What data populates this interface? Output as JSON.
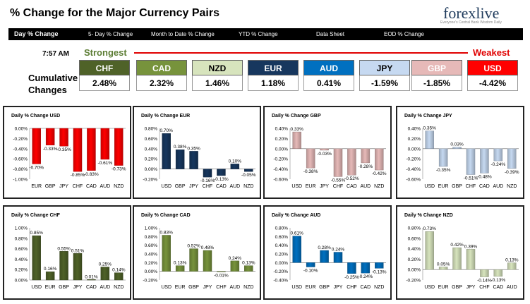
{
  "header": {
    "title": "% Change for the Major Currency Pairs",
    "logo": "forexlive",
    "logo_tagline": "Everyone's Central Bank Wisdom Daily"
  },
  "nav": [
    "Day % Change",
    "5- Day % Change",
    "Month to Date % Change",
    "YTD % Change",
    "Data Sheet",
    "EOD % Change"
  ],
  "time": "7:57 AM",
  "cumulative_label_1": "Cumulative",
  "cumulative_label_2": "Changes",
  "strongest_label": "Strongest",
  "weakest_label": "Weakest",
  "currencies": [
    {
      "code": "CHF",
      "value": "2.48%",
      "bg": "#4f6228",
      "fg": "#ffffff"
    },
    {
      "code": "CAD",
      "value": "2.32%",
      "bg": "#77933c",
      "fg": "#ffffff"
    },
    {
      "code": "NZD",
      "value": "1.46%",
      "bg": "#d7e4bd",
      "fg": "#000000"
    },
    {
      "code": "EUR",
      "value": "1.18%",
      "bg": "#17375e",
      "fg": "#ffffff"
    },
    {
      "code": "AUD",
      "value": "0.41%",
      "bg": "#0070c0",
      "fg": "#ffffff"
    },
    {
      "code": "JPY",
      "value": "-1.59%",
      "bg": "#c6d9f1",
      "fg": "#000000"
    },
    {
      "code": "GBP",
      "value": "-1.85%",
      "bg": "#e6b9b8",
      "fg": "#ffffff"
    },
    {
      "code": "USD",
      "value": "-4.42%",
      "bg": "#ff0000",
      "fg": "#ffffff"
    }
  ],
  "chart_data": [
    {
      "type": "bar",
      "title": "Daily % Change USD",
      "categories": [
        "EUR",
        "GBP",
        "JPY",
        "CHF",
        "CAD",
        "AUD",
        "NZD"
      ],
      "values": [
        -0.7,
        -0.33,
        -0.35,
        -0.85,
        -0.83,
        -0.61,
        -0.73
      ],
      "labels": [
        "-0.70%",
        "-0.33%",
        "-0.35%",
        "-0.85%",
        "-0.83%",
        "-0.61%",
        "-0.73%"
      ],
      "ylim": [
        -1.0,
        0.0
      ],
      "ytick_labels": [
        "0.00%",
        "-0.20%",
        "-0.40%",
        "-0.60%",
        "-0.80%",
        "-1.00%"
      ],
      "color": "#ff0000"
    },
    {
      "type": "bar",
      "title": "Daily % Change EUR",
      "categories": [
        "USD",
        "GBP",
        "JPY",
        "CHF",
        "CAD",
        "AUD",
        "NZD"
      ],
      "values": [
        0.7,
        0.38,
        0.35,
        -0.16,
        -0.13,
        0.1,
        -0.05
      ],
      "labels": [
        "0.70%",
        "0.38%",
        "0.35%",
        "-0.16%",
        "-0.13%",
        "0.10%",
        "-0.05%"
      ],
      "ylim": [
        -0.2,
        0.8
      ],
      "ytick_labels": [
        "0.80%",
        "0.60%",
        "0.40%",
        "0.20%",
        "0.00%",
        "-0.20%"
      ],
      "color": "#17375e"
    },
    {
      "type": "bar",
      "title": "Daily % Change GBP",
      "categories": [
        "USD",
        "EUR",
        "JPY",
        "CHF",
        "CAD",
        "AUD",
        "NZD"
      ],
      "values": [
        0.33,
        -0.38,
        -0.03,
        -0.55,
        -0.52,
        -0.28,
        -0.42
      ],
      "labels": [
        "0.33%",
        "-0.38%",
        "-0.03%",
        "-0.55%",
        "-0.52%",
        "-0.28%",
        "-0.42%"
      ],
      "ylim": [
        -0.6,
        0.4
      ],
      "ytick_labels": [
        "0.40%",
        "0.20%",
        "0.00%",
        "-0.20%",
        "-0.40%",
        "-0.60%"
      ],
      "color": "#e6b9b8"
    },
    {
      "type": "bar",
      "title": "Daily % Change JPY",
      "categories": [
        "USD",
        "EUR",
        "GBP",
        "CHF",
        "CAD",
        "AUD",
        "NZD"
      ],
      "values": [
        0.35,
        -0.35,
        0.03,
        -0.51,
        -0.48,
        -0.24,
        -0.39
      ],
      "labels": [
        "0.35%",
        "-0.35%",
        "0.03%",
        "-0.51%",
        "-0.48%",
        "-0.24%",
        "-0.39%"
      ],
      "ylim": [
        -0.6,
        0.4
      ],
      "ytick_labels": [
        "0.40%",
        "0.20%",
        "0.00%",
        "-0.20%",
        "-0.40%",
        "-0.60%"
      ],
      "color": "#c6d9f1"
    },
    {
      "type": "bar",
      "title": "Daily % Change CHF",
      "categories": [
        "USD",
        "EUR",
        "GBP",
        "JPY",
        "CAD",
        "AUD",
        "NZD"
      ],
      "values": [
        0.85,
        0.16,
        0.55,
        0.51,
        0.01,
        0.25,
        0.14
      ],
      "labels": [
        "0.85%",
        "0.16%",
        "0.55%",
        "0.51%",
        "0.01%",
        "0.25%",
        "0.14%"
      ],
      "ylim": [
        0.0,
        1.0
      ],
      "ytick_labels": [
        "1.00%",
        "0.80%",
        "0.60%",
        "0.40%",
        "0.20%",
        "0.00%"
      ],
      "color": "#4f6228"
    },
    {
      "type": "bar",
      "title": "Daily % Change CAD",
      "categories": [
        "USD",
        "EUR",
        "GBP",
        "JPY",
        "CHF",
        "AUD",
        "NZD"
      ],
      "values": [
        0.83,
        0.13,
        0.52,
        0.48,
        -0.01,
        0.24,
        0.13
      ],
      "labels": [
        "0.83%",
        "0.13%",
        "0.52%",
        "0.48%",
        "-0.01%",
        "0.24%",
        "0.13%"
      ],
      "ylim": [
        -0.2,
        1.0
      ],
      "ytick_labels": [
        "1.00%",
        "0.80%",
        "0.60%",
        "0.40%",
        "0.20%",
        "0.00%",
        "-0.20%"
      ],
      "color": "#77933c"
    },
    {
      "type": "bar",
      "title": "Daily % Change AUD",
      "categories": [
        "USD",
        "EUR",
        "GBP",
        "JPY",
        "CHF",
        "CAD",
        "NZD"
      ],
      "values": [
        0.61,
        -0.1,
        0.28,
        0.24,
        -0.25,
        -0.24,
        -0.13
      ],
      "labels": [
        "0.61%",
        "-0.10%",
        "0.28%",
        "0.24%",
        "-0.25%",
        "-0.24%",
        "-0.13%"
      ],
      "ylim": [
        -0.4,
        0.8
      ],
      "ytick_labels": [
        "0.80%",
        "0.60%",
        "0.40%",
        "0.20%",
        "0.00%",
        "-0.20%",
        "-0.40%"
      ],
      "color": "#0070c0"
    },
    {
      "type": "bar",
      "title": "Daily % Change NZD",
      "categories": [
        "USD",
        "EUR",
        "GBP",
        "JPY",
        "CHF",
        "CAD",
        "AUD"
      ],
      "values": [
        0.73,
        0.05,
        0.42,
        0.39,
        -0.14,
        -0.13,
        0.13
      ],
      "labels": [
        "0.73%",
        "0.05%",
        "0.42%",
        "0.39%",
        "-0.14%",
        "-0.13%",
        "0.13%"
      ],
      "ylim": [
        -0.2,
        0.8
      ],
      "ytick_labels": [
        "0.80%",
        "0.60%",
        "0.40%",
        "0.20%",
        "0.00%",
        "-0.20%"
      ],
      "color": "#d7e4bd"
    }
  ]
}
